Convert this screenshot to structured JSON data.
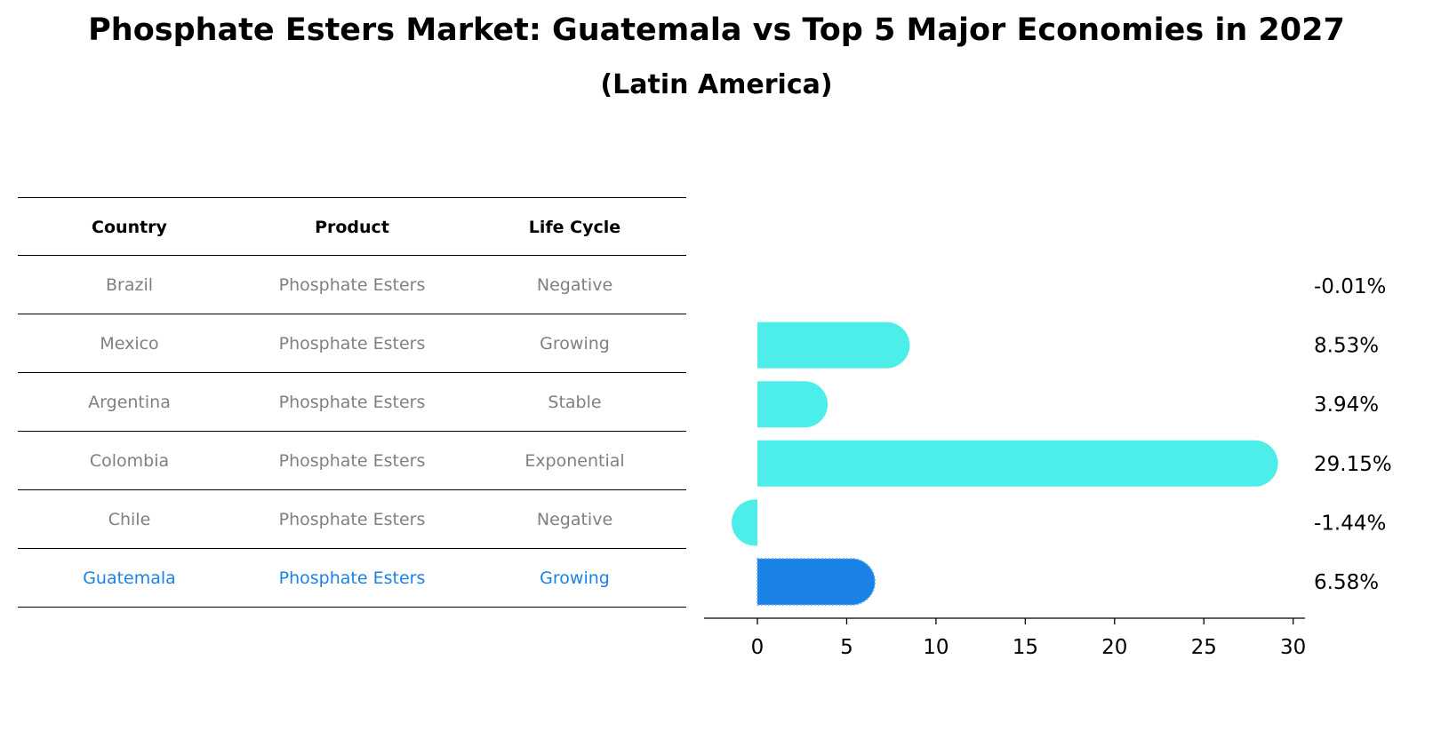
{
  "title": "Phosphate Esters Market: Guatemala vs Top 5 Major Economies in 2027",
  "subtitle": "(Latin America)",
  "table": {
    "headers": [
      "Country",
      "Product",
      "Life Cycle"
    ],
    "rows": [
      {
        "country": "Brazil",
        "product": "Phosphate Esters",
        "life_cycle": "Negative"
      },
      {
        "country": "Mexico",
        "product": "Phosphate Esters",
        "life_cycle": "Growing"
      },
      {
        "country": "Argentina",
        "product": "Phosphate Esters",
        "life_cycle": "Stable"
      },
      {
        "country": "Colombia",
        "product": "Phosphate Esters",
        "life_cycle": "Exponential"
      },
      {
        "country": "Chile",
        "product": "Phosphate Esters",
        "life_cycle": "Negative"
      },
      {
        "country": "Guatemala",
        "product": "Phosphate Esters",
        "life_cycle": "Growing"
      }
    ]
  },
  "colors": {
    "bar": "#4deeea",
    "highlight": "#1a82e6",
    "text_muted": "#808080"
  },
  "chart_data": {
    "type": "bar",
    "orientation": "horizontal",
    "categories": [
      "Brazil",
      "Mexico",
      "Argentina",
      "Colombia",
      "Chile",
      "Guatemala"
    ],
    "values": [
      -0.01,
      8.53,
      3.94,
      29.15,
      -1.44,
      6.58
    ],
    "value_labels": [
      "-0.01%",
      "8.53%",
      "3.94%",
      "29.15%",
      "-1.44%",
      "6.58%"
    ],
    "highlight_category": "Guatemala",
    "xlim": [
      -3,
      30.6
    ],
    "xticks": [
      0,
      5,
      10,
      15,
      20,
      25,
      30
    ],
    "title": "",
    "xlabel": "",
    "ylabel": ""
  }
}
